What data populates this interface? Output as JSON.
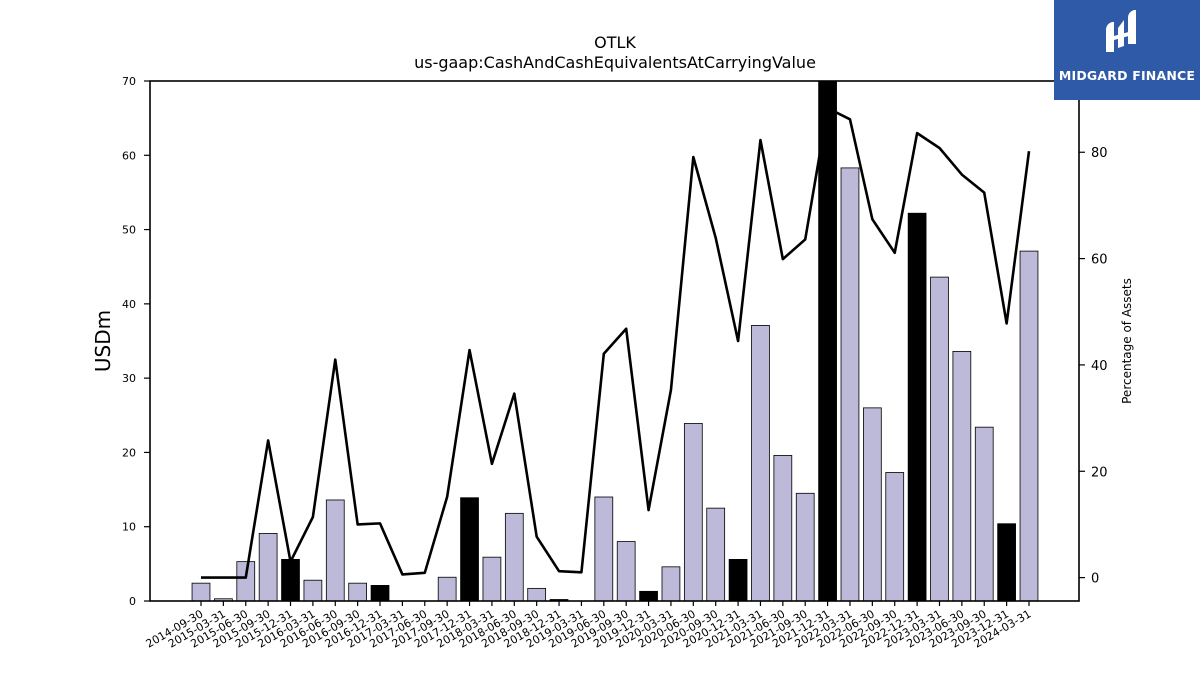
{
  "chart_data": {
    "type": "bar",
    "title": "OTLK",
    "subtitle": "us-gaap:CashAndCashEquivalentsAtCarryingValue",
    "ylabel": "USDm",
    "y2label": "Percentage of Assets",
    "ylim": [
      0,
      70
    ],
    "y2lim": [
      -4.4,
      93.4
    ],
    "yticks": [
      0,
      10,
      20,
      30,
      40,
      50,
      60,
      70
    ],
    "y2ticks": [
      0,
      20,
      40,
      60,
      80
    ],
    "grid": false,
    "categories": [
      "2014-09-30",
      "2015-03-31",
      "2015-06-30",
      "2015-09-30",
      "2015-12-31",
      "2016-03-31",
      "2016-06-30",
      "2016-09-30",
      "2016-12-31",
      "2017-03-31",
      "2017-06-30",
      "2017-09-30",
      "2017-12-31",
      "2018-03-31",
      "2018-06-30",
      "2018-09-30",
      "2018-12-31",
      "2019-03-31",
      "2019-06-30",
      "2019-09-30",
      "2019-12-31",
      "2020-03-31",
      "2020-06-30",
      "2020-09-30",
      "2020-12-31",
      "2021-03-31",
      "2021-06-30",
      "2021-09-30",
      "2021-12-31",
      "2022-03-31",
      "2022-06-30",
      "2022-09-30",
      "2022-12-31",
      "2023-03-31",
      "2023-06-30",
      "2023-09-30",
      "2023-12-31",
      "2024-03-31"
    ],
    "series": [
      {
        "type": "bar",
        "values": [
          2.4,
          0.3,
          5.3,
          9.1,
          5.6,
          2.8,
          13.6,
          2.4,
          2.1,
          0,
          0,
          3.2,
          13.9,
          5.9,
          11.8,
          1.7,
          0.2,
          0,
          14.0,
          8.0,
          1.3,
          4.6,
          23.9,
          12.5,
          5.6,
          37.1,
          19.6,
          14.5,
          70.0,
          58.3,
          26.0,
          17.3,
          52.2,
          43.6,
          33.6,
          23.4,
          10.4,
          47.1
        ],
        "highlight": [
          false,
          false,
          false,
          false,
          true,
          false,
          false,
          false,
          true,
          false,
          false,
          false,
          true,
          false,
          false,
          false,
          true,
          false,
          false,
          false,
          true,
          false,
          false,
          false,
          true,
          false,
          false,
          false,
          true,
          false,
          false,
          false,
          true,
          false,
          false,
          false,
          true,
          false
        ],
        "color": "#bcb9d9",
        "highlight_color": "#000000"
      },
      {
        "type": "line",
        "axis": "secondary",
        "values": [
          0,
          0,
          0,
          25.8,
          3.0,
          11.4,
          41.0,
          10.0,
          10.2,
          0.6,
          0.9,
          15.2,
          42.8,
          21.4,
          34.6,
          7.7,
          1.2,
          1.0,
          42.1,
          46.8,
          12.7,
          35.3,
          79.1,
          63.9,
          44.5,
          82.3,
          59.9,
          63.6,
          88.3,
          86.2,
          67.4,
          61.1,
          83.6,
          80.8,
          75.8,
          72.4,
          47.8,
          80.2
        ],
        "color": "#000000"
      }
    ]
  },
  "logo": {
    "brand": "MIDGARD FINANCE",
    "icon": "midgard-finance-logo-icon",
    "color": "#2f5aa8"
  }
}
